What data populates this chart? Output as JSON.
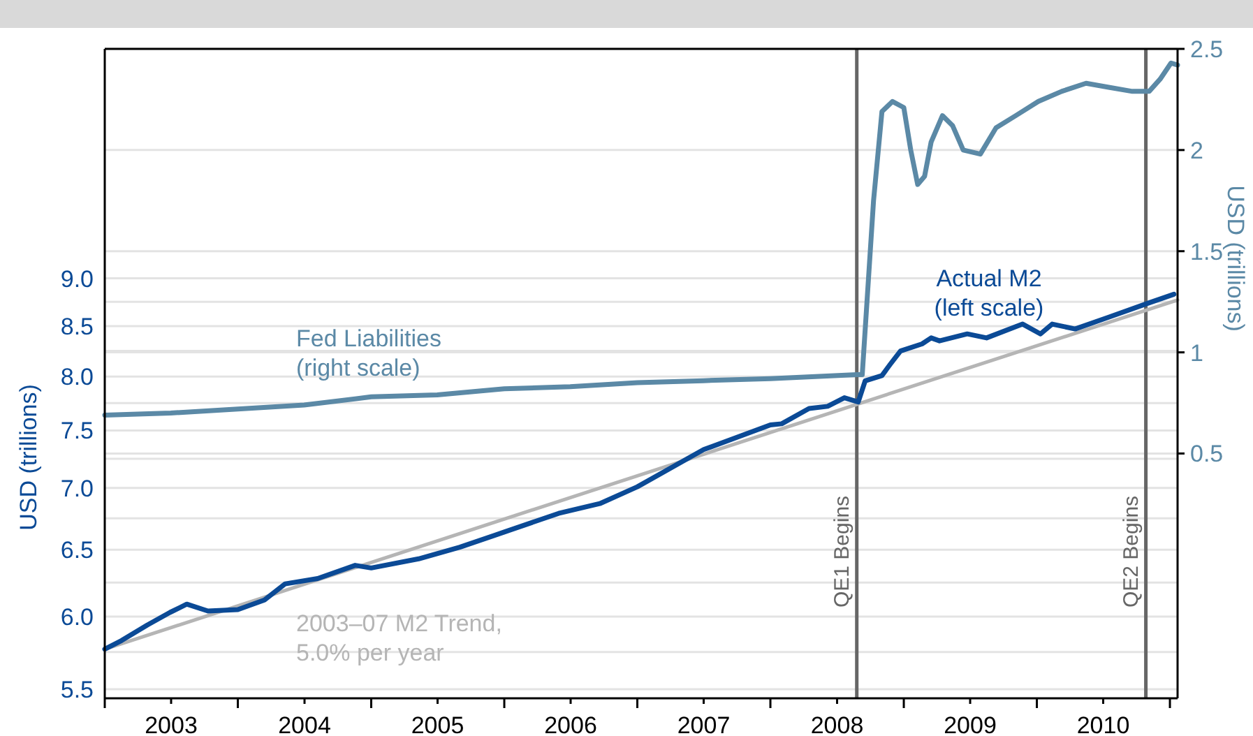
{
  "chart_data": {
    "type": "line",
    "ylabel": "USD (trillions)",
    "y2label": "USD (trillions)",
    "xlim": [
      "2003-01-01",
      "2011-01-22"
    ],
    "xticks": [
      {
        "value": "2003-01-01",
        "label": null
      },
      {
        "value": "2003-07-02",
        "label": "2003"
      },
      {
        "value": "2004-01-01",
        "label": null
      },
      {
        "value": "2004-07-02",
        "label": "2004"
      },
      {
        "value": "2005-01-01",
        "label": null
      },
      {
        "value": "2005-07-02",
        "label": "2005"
      },
      {
        "value": "2006-01-01",
        "label": null
      },
      {
        "value": "2006-07-02",
        "label": "2006"
      },
      {
        "value": "2007-01-01",
        "label": null
      },
      {
        "value": "2007-07-02",
        "label": "2007"
      },
      {
        "value": "2008-01-01",
        "label": null
      },
      {
        "value": "2008-07-02",
        "label": "2008"
      },
      {
        "value": "2009-01-01",
        "label": null
      },
      {
        "value": "2009-07-02",
        "label": "2009"
      },
      {
        "value": "2010-01-01",
        "label": null
      },
      {
        "value": "2010-07-02",
        "label": "2010"
      },
      {
        "value": "2011-01-01",
        "label": null
      }
    ],
    "log": "y",
    "ylim": [
      5.44,
      11.85
    ],
    "yticks": [
      {
        "value": 5.5,
        "label": "5.5"
      },
      {
        "value": 5.75,
        "label": null
      },
      {
        "value": 6,
        "label": "6.0"
      },
      {
        "value": 6.25,
        "label": null
      },
      {
        "value": 6.5,
        "label": "6.5"
      },
      {
        "value": 6.75,
        "label": null
      },
      {
        "value": 7,
        "label": "7.0"
      },
      {
        "value": 7.25,
        "label": null
      },
      {
        "value": 7.5,
        "label": "7.5"
      },
      {
        "value": 7.75,
        "label": null
      },
      {
        "value": 8,
        "label": "8.0"
      },
      {
        "value": 8.25,
        "label": null
      },
      {
        "value": 8.5,
        "label": "8.5"
      },
      {
        "value": 8.75,
        "label": null
      },
      {
        "value": 9,
        "label": "9.0"
      }
    ],
    "y2lim": [
      -0.71,
      2.5
    ],
    "y2ticks": [
      0.5,
      1,
      1.5,
      2,
      2.5
    ],
    "grid": "y",
    "series": [
      {
        "name": "2003–07 M2 Trend,\n5.0% per year",
        "color": "#b5b5b5",
        "x": [
          "2003-01-01",
          "2011-01-22"
        ],
        "values": [
          5.77,
          8.77
        ]
      },
      {
        "name": "Fed Liabilities\n(right scale)",
        "color": "#5b89a6",
        "axis": "y2",
        "x": [
          "2003-01-01",
          "2003-07-01",
          "2004-01-01",
          "2004-07-01",
          "2005-01-01",
          "2005-07-01",
          "2006-01-01",
          "2006-07-01",
          "2007-01-01",
          "2007-07-01",
          "2008-01-01",
          "2008-08-25",
          "2008-09-09",
          "2008-10-10",
          "2008-11-02",
          "2008-12-01",
          "2009-01-01",
          "2009-01-20",
          "2009-02-08",
          "2009-02-27",
          "2009-03-17",
          "2009-04-17",
          "2009-05-15",
          "2009-06-13",
          "2009-07-30",
          "2009-09-11",
          "2009-11-04",
          "2010-01-05",
          "2010-03-10",
          "2010-05-16",
          "2010-07-17",
          "2010-09-20",
          "2010-11-05",
          "2010-12-05",
          "2011-01-04",
          "2011-01-22"
        ],
        "values": [
          0.69,
          0.7,
          0.72,
          0.74,
          0.78,
          0.79,
          0.82,
          0.83,
          0.85,
          0.86,
          0.87,
          0.89,
          0.89,
          1.75,
          2.19,
          2.24,
          2.21,
          2.0,
          1.83,
          1.87,
          2.04,
          2.17,
          2.12,
          2.0,
          1.98,
          2.11,
          2.17,
          2.24,
          2.29,
          2.33,
          2.31,
          2.29,
          2.29,
          2.35,
          2.43,
          2.42
        ]
      },
      {
        "name": "Actual M2\n(left scale)",
        "color": "#0b4a96",
        "x": [
          "2003-01-01",
          "2003-02-16",
          "2003-04-28",
          "2003-06-29",
          "2003-08-14",
          "2003-10-11",
          "2004-01-01",
          "2004-03-14",
          "2004-05-10",
          "2004-08-07",
          "2004-11-18",
          "2005-01-01",
          "2005-05-11",
          "2005-09-01",
          "2006-01-01",
          "2006-05-30",
          "2006-09-20",
          "2007-01-01",
          "2007-07-02",
          "2008-01-01",
          "2008-02-01",
          "2008-04-16",
          "2008-06-06",
          "2008-07-22",
          "2008-08-29",
          "2008-09-17",
          "2008-11-02",
          "2008-11-25",
          "2008-12-23",
          "2009-02-20",
          "2009-03-17",
          "2009-04-09",
          "2009-06-24",
          "2009-08-16",
          "2009-11-23",
          "2010-01-11",
          "2010-02-12",
          "2010-04-16",
          "2010-07-17",
          "2010-11-05",
          "2011-01-12"
        ],
        "values": [
          5.77,
          5.83,
          5.94,
          6.03,
          6.09,
          6.04,
          6.05,
          6.12,
          6.24,
          6.28,
          6.38,
          6.36,
          6.43,
          6.52,
          6.64,
          6.79,
          6.87,
          7.01,
          7.33,
          7.55,
          7.56,
          7.7,
          7.72,
          7.8,
          7.76,
          7.96,
          8.01,
          8.12,
          8.25,
          8.32,
          8.38,
          8.35,
          8.42,
          8.38,
          8.52,
          8.42,
          8.52,
          8.47,
          8.59,
          8.74,
          8.83
        ]
      }
    ],
    "ref_lines": [
      {
        "axis": "x",
        "value": "2008-08-25",
        "label": "QE1 Begins",
        "color": "#666666"
      },
      {
        "axis": "x",
        "value": "2010-10-27",
        "label": "QE2 Begins",
        "color": "#666666"
      }
    ]
  }
}
